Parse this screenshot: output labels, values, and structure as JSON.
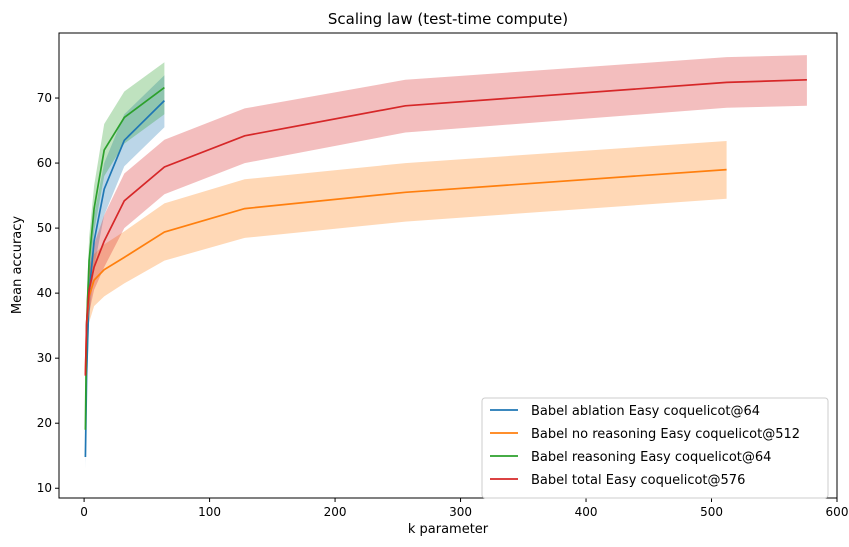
{
  "chart_data": {
    "type": "line",
    "title": "Scaling law (test-time compute)",
    "xlabel": "k parameter",
    "ylabel": "Mean accuracy",
    "xlim": [
      -20,
      600
    ],
    "ylim": [
      8.5,
      80
    ],
    "xticks": [
      0,
      100,
      200,
      300,
      400,
      500,
      600
    ],
    "yticks": [
      10,
      20,
      30,
      40,
      50,
      60,
      70
    ],
    "grid": false,
    "legend_position": "lower-right",
    "series": [
      {
        "name": "Babel ablation Easy coquelicot@64",
        "color": "#1f77b4",
        "x": [
          1,
          2,
          4,
          8,
          16,
          32,
          64
        ],
        "y": [
          14.8,
          27.5,
          40.0,
          48.0,
          56.0,
          63.5,
          69.6
        ],
        "lower": [
          13.0,
          24.0,
          36.0,
          44.0,
          52.0,
          59.5,
          65.5
        ],
        "upper": [
          16.5,
          31.0,
          44.0,
          52.0,
          60.0,
          67.5,
          73.5
        ]
      },
      {
        "name": "Babel no reasoning Easy coquelicot@512",
        "color": "#ff7f0e",
        "x": [
          1,
          2,
          4,
          8,
          16,
          32,
          64,
          128,
          256,
          512
        ],
        "y": [
          27.5,
          35.0,
          39.5,
          42.0,
          43.6,
          45.5,
          49.4,
          53.0,
          55.5,
          59.0
        ],
        "lower": [
          24.0,
          31.0,
          35.5,
          38.0,
          39.5,
          41.5,
          45.0,
          48.5,
          51.0,
          54.5
        ],
        "upper": [
          31.0,
          39.0,
          43.5,
          46.0,
          47.5,
          49.5,
          53.8,
          57.5,
          60.0,
          63.4
        ]
      },
      {
        "name": "Babel reasoning Easy coquelicot@64",
        "color": "#2ca02c",
        "x": [
          1,
          2,
          4,
          8,
          16,
          32,
          64
        ],
        "y": [
          19.0,
          35.0,
          45.0,
          53.0,
          62.0,
          67.0,
          71.6
        ],
        "lower": [
          17.0,
          31.5,
          41.5,
          49.5,
          58.0,
          63.0,
          67.5
        ],
        "upper": [
          21.0,
          38.5,
          48.5,
          56.5,
          66.0,
          71.0,
          75.5
        ]
      },
      {
        "name": "Babel total Easy coquelicot@576",
        "color": "#d62728",
        "x": [
          1,
          2,
          4,
          8,
          16,
          32,
          64,
          128,
          256,
          512,
          576
        ],
        "y": [
          27.3,
          35.5,
          40.5,
          44.0,
          48.0,
          54.2,
          59.4,
          64.2,
          68.8,
          72.4,
          72.8
        ],
        "lower": [
          25.0,
          32.5,
          37.0,
          40.5,
          44.0,
          50.0,
          55.2,
          60.0,
          64.7,
          68.5,
          68.8
        ],
        "upper": [
          29.5,
          38.5,
          44.0,
          47.5,
          52.0,
          58.4,
          63.6,
          68.4,
          72.8,
          76.3,
          76.6
        ]
      }
    ]
  }
}
